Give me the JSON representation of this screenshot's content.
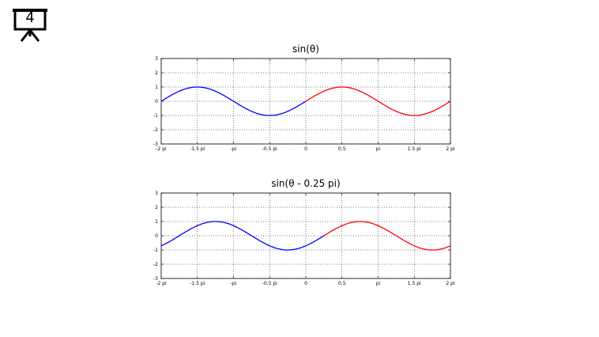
{
  "slide": {
    "number": "4",
    "icon": "presentation-easel-icon"
  },
  "chart_data": [
    {
      "type": "line",
      "title": "sin(θ)",
      "function": "sin(theta)",
      "phase_shift_pi": 0,
      "xlabel": "",
      "ylabel": "",
      "xlim_pi": [
        -2,
        2
      ],
      "ylim": [
        -3,
        3
      ],
      "grid": true,
      "x_tick_labels": [
        "-2 pi",
        "-1.5 pi",
        "-pi",
        "-0.5 pi",
        "0",
        "0.5",
        "pi",
        "1.5 pi",
        "2 pi"
      ],
      "x_tick_values_pi": [
        -2,
        -1.5,
        -1,
        -0.5,
        0,
        0.5,
        1,
        1.5,
        2
      ],
      "y_tick_labels": [
        "3",
        "2",
        "1",
        "0",
        "-1",
        "-2",
        "-3"
      ],
      "y_tick_values": [
        3,
        2,
        1,
        0,
        -1,
        -2,
        -3
      ],
      "series": [
        {
          "color": "#0000ff",
          "x_range_pi": [
            -2,
            0
          ],
          "color_name": "blue"
        },
        {
          "color": "#ff0000",
          "x_range_pi": [
            0,
            2
          ],
          "color_name": "red"
        }
      ]
    },
    {
      "type": "line",
      "title": "sin(θ - 0.25 pi)",
      "function": "sin(theta - 0.25 pi)",
      "phase_shift_pi": 0.25,
      "xlabel": "",
      "ylabel": "",
      "xlim_pi": [
        -2,
        2
      ],
      "ylim": [
        -3,
        3
      ],
      "grid": true,
      "x_tick_labels": [
        "-2 pi",
        "-1.5 pi",
        "-pi",
        "-0.5 pi",
        "0",
        "0.5",
        "pi",
        "1.5 pi",
        "2 pi"
      ],
      "x_tick_values_pi": [
        -2,
        -1.5,
        -1,
        -0.5,
        0,
        0.5,
        1,
        1.5,
        2
      ],
      "y_tick_labels": [
        "3",
        "2",
        "1",
        "0",
        "-1",
        "-2",
        "-3"
      ],
      "y_tick_values": [
        3,
        2,
        1,
        0,
        -1,
        -2,
        -3
      ],
      "series": [
        {
          "color": "#0000ff",
          "x_range_pi": [
            -2,
            0.25
          ],
          "color_name": "blue"
        },
        {
          "color": "#ff0000",
          "x_range_pi": [
            0.25,
            2
          ],
          "color_name": "red"
        }
      ]
    }
  ]
}
